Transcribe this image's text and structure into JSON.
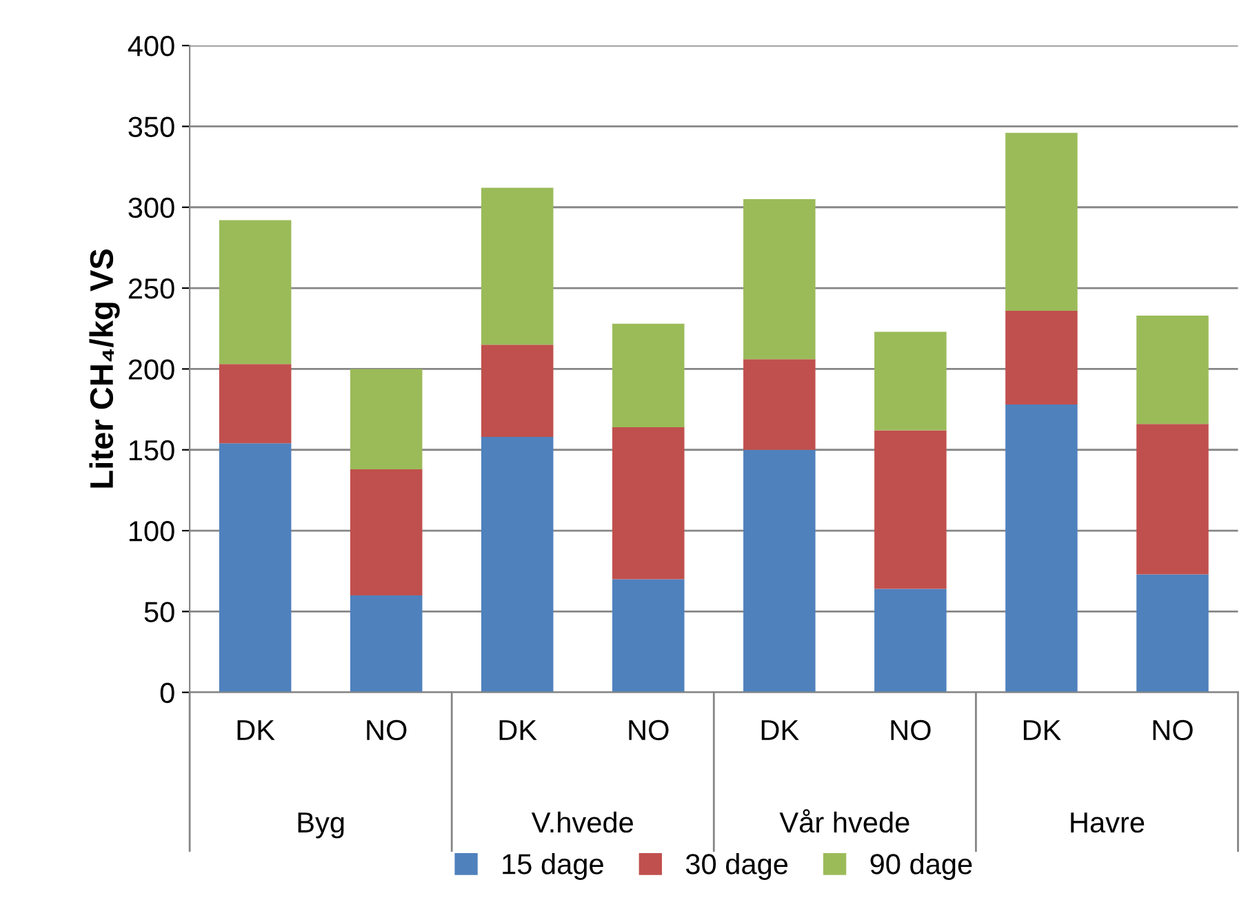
{
  "chart_data": {
    "type": "bar",
    "ylabel": "Liter CH₄/kg VS",
    "categories": [
      "DK",
      "NO",
      "DK",
      "NO",
      "DK",
      "NO",
      "DK",
      "NO"
    ],
    "annotations": [
      "Byg",
      "V.hvede",
      "Vår hvede",
      "Havre"
    ],
    "stacked": true,
    "series": [
      {
        "name": "15 dage",
        "color": "#4f81bd",
        "values": [
          154,
          60,
          158,
          70,
          150,
          64,
          178,
          73
        ]
      },
      {
        "name": "30 dage",
        "color": "#c0504d",
        "values": [
          49,
          78,
          57,
          94,
          56,
          98,
          58,
          93
        ]
      },
      {
        "name": "90 dage",
        "color": "#9bbb59",
        "values": [
          89,
          62,
          97,
          64,
          99,
          61,
          110,
          67
        ]
      }
    ],
    "ylim": [
      0,
      400
    ],
    "yticks": [
      0,
      50,
      100,
      150,
      200,
      250,
      300,
      350,
      400
    ],
    "grid": "y",
    "legend": "bottom"
  }
}
